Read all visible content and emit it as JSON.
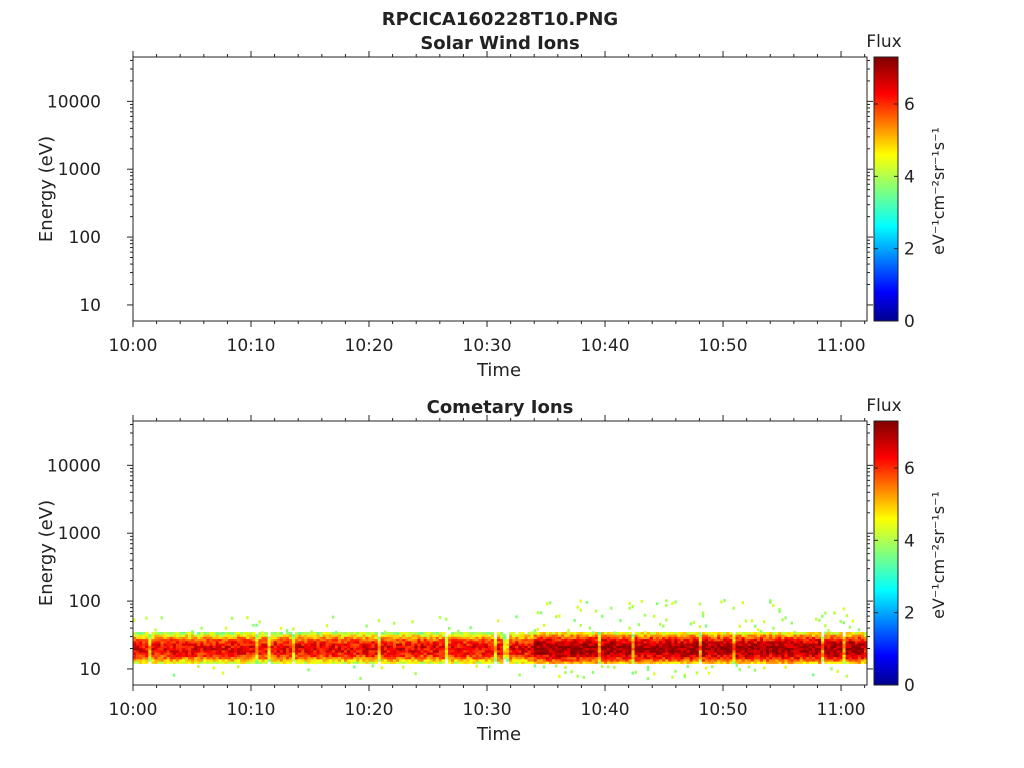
{
  "figure": {
    "title": "RPCICA160228T10.PNG"
  },
  "colorbar": {
    "label": "Flux",
    "unit_html": "eV⁻¹cm⁻²sr⁻¹s⁻¹",
    "ticks": [
      "0",
      "2",
      "4",
      "6"
    ],
    "range": [
      0,
      7.3
    ],
    "colormap": [
      "#00008f",
      "#0000ff",
      "#00ffff",
      "#ffff00",
      "#ff0000",
      "#800000"
    ]
  },
  "chart_data": [
    {
      "type": "heatmap",
      "title": "Solar Wind Ions",
      "xlabel": "Time",
      "ylabel": "Energy (eV)",
      "x_ticks": [
        "10:00",
        "10:10",
        "10:20",
        "10:30",
        "10:40",
        "10:50",
        "11:00"
      ],
      "y_ticks": [
        "10",
        "100",
        "1000",
        "10000"
      ],
      "y_scale": "log",
      "xlim": [
        "10:00",
        "11:02"
      ],
      "ylim": [
        5.8,
        45000
      ],
      "data": "empty"
    },
    {
      "type": "heatmap",
      "title": "Cometary Ions",
      "xlabel": "Time",
      "ylabel": "Energy (eV)",
      "x_ticks": [
        "10:00",
        "10:10",
        "10:20",
        "10:30",
        "10:40",
        "10:50",
        "11:00"
      ],
      "y_ticks": [
        "10",
        "100",
        "1000",
        "10000"
      ],
      "y_scale": "log",
      "xlim": [
        "10:00",
        "11:02"
      ],
      "ylim": [
        5.8,
        45000
      ],
      "band_energy_range_eV": [
        12,
        35
      ],
      "peak_energy_eV": 20,
      "typical_peak_flux": 6.5,
      "enhanced_intervals": [
        "10:34–11:02"
      ]
    }
  ]
}
